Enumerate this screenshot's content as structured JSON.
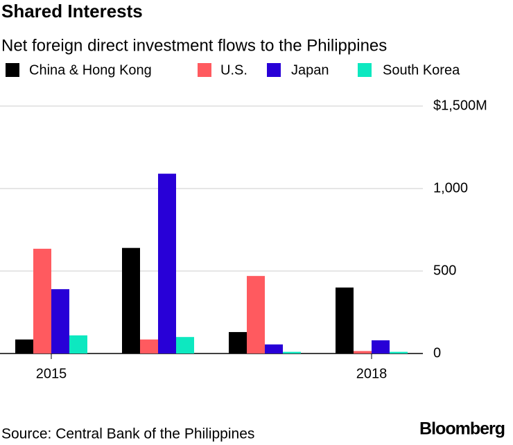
{
  "chart_data": {
    "type": "bar",
    "title": "Shared Interests",
    "subtitle": "Net foreign direct investment flows to the Philippines",
    "categories": [
      "2015",
      null,
      null,
      "2018"
    ],
    "series": [
      {
        "name": "China & Hong Kong",
        "color": "#000000",
        "values": [
          85,
          640,
          130,
          400
        ]
      },
      {
        "name": "U.S.",
        "color": "#ff5a5f",
        "values": [
          635,
          85,
          470,
          15
        ]
      },
      {
        "name": "Japan",
        "color": "#2800d7",
        "values": [
          390,
          1090,
          55,
          80
        ]
      },
      {
        "name": "South Korea",
        "color": "#0de8c0",
        "values": [
          110,
          100,
          10,
          10
        ]
      }
    ],
    "ylim": [
      0,
      1500
    ],
    "yticks": [
      0,
      500,
      {
        "value": 1000,
        "label": "1,000"
      },
      {
        "value": 1500,
        "label": "$1,500M"
      }
    ],
    "grid": true,
    "source": "Source: Central Bank of the Philippines",
    "brand": "Bloomberg"
  }
}
